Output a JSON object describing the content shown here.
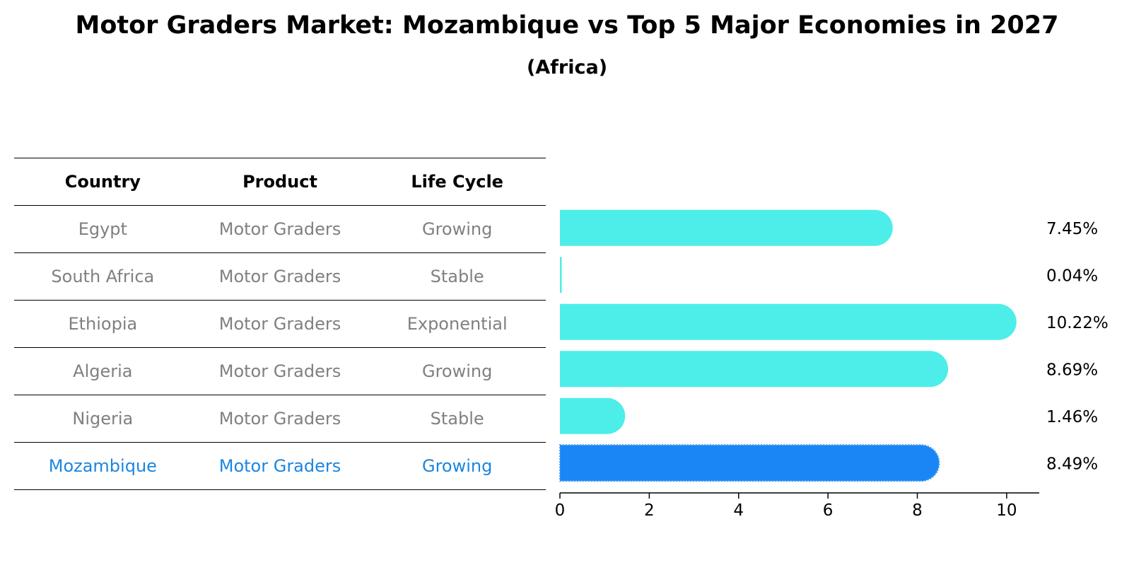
{
  "chart_data": {
    "type": "bar",
    "orientation": "horizontal",
    "title": "Motor Graders Market: Mozambique vs Top 5 Major Economies in 2027",
    "subtitle": "(Africa)",
    "table": {
      "headers": [
        "Country",
        "Product",
        "Life Cycle"
      ],
      "rows": [
        {
          "country": "Egypt",
          "product": "Motor Graders",
          "life_cycle": "Growing"
        },
        {
          "country": "South Africa",
          "product": "Motor Graders",
          "life_cycle": "Stable"
        },
        {
          "country": "Ethiopia",
          "product": "Motor Graders",
          "life_cycle": "Exponential"
        },
        {
          "country": "Algeria",
          "product": "Motor Graders",
          "life_cycle": "Growing"
        },
        {
          "country": "Nigeria",
          "product": "Motor Graders",
          "life_cycle": "Stable"
        },
        {
          "country": "Mozambique",
          "product": "Motor Graders",
          "life_cycle": "Growing"
        }
      ]
    },
    "categories": [
      "Egypt",
      "South Africa",
      "Ethiopia",
      "Algeria",
      "Nigeria",
      "Mozambique"
    ],
    "values": [
      7.45,
      0.04,
      10.22,
      8.69,
      1.46,
      8.49
    ],
    "value_labels": [
      "7.45%",
      "0.04%",
      "10.22%",
      "8.69%",
      "1.46%",
      "8.49%"
    ],
    "highlight": "Mozambique",
    "xlim": [
      0,
      10.73
    ],
    "xticks": [
      0,
      2,
      4,
      6,
      8,
      10
    ],
    "xtick_labels": [
      "0",
      "2",
      "4",
      "6",
      "8",
      "10"
    ],
    "colors": {
      "bar": "#4deee9",
      "highlight": "#1a86f5",
      "highlight_text": "#1a86e0",
      "text_muted": "#808080"
    }
  }
}
